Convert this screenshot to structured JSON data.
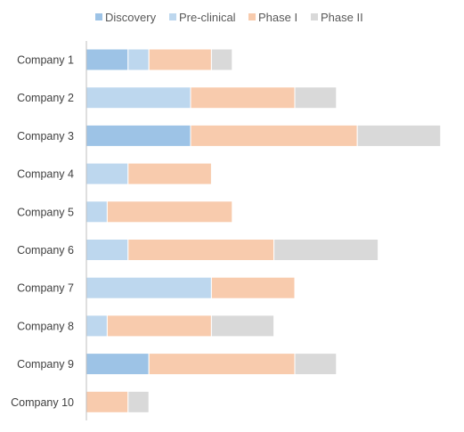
{
  "chart_data": {
    "type": "bar",
    "orientation": "horizontal",
    "stacked": true,
    "title": "",
    "xlabel": "",
    "ylabel": "",
    "xlim": [
      0,
      17
    ],
    "grid": false,
    "legend_position": "top",
    "categories": [
      "Company 1",
      "Company 2",
      "Company 3",
      "Company 4",
      "Company 5",
      "Company 6",
      "Company 7",
      "Company 8",
      "Company 9",
      "Company 10"
    ],
    "series": [
      {
        "name": "Discovery",
        "color": "#9dc3e6",
        "values": [
          2,
          0,
          5,
          0,
          0,
          0,
          0,
          0,
          3,
          0
        ]
      },
      {
        "name": "Pre-clinical",
        "color": "#bdd7ee",
        "values": [
          1,
          5,
          0,
          2,
          1,
          2,
          6,
          1,
          0,
          0
        ]
      },
      {
        "name": "Phase I",
        "color": "#f8cbad",
        "values": [
          3,
          5,
          8,
          4,
          6,
          7,
          4,
          5,
          7,
          2
        ]
      },
      {
        "name": "Phase II",
        "color": "#d9d9d9",
        "values": [
          1,
          2,
          4,
          0,
          0,
          5,
          0,
          3,
          2,
          1
        ]
      }
    ]
  }
}
